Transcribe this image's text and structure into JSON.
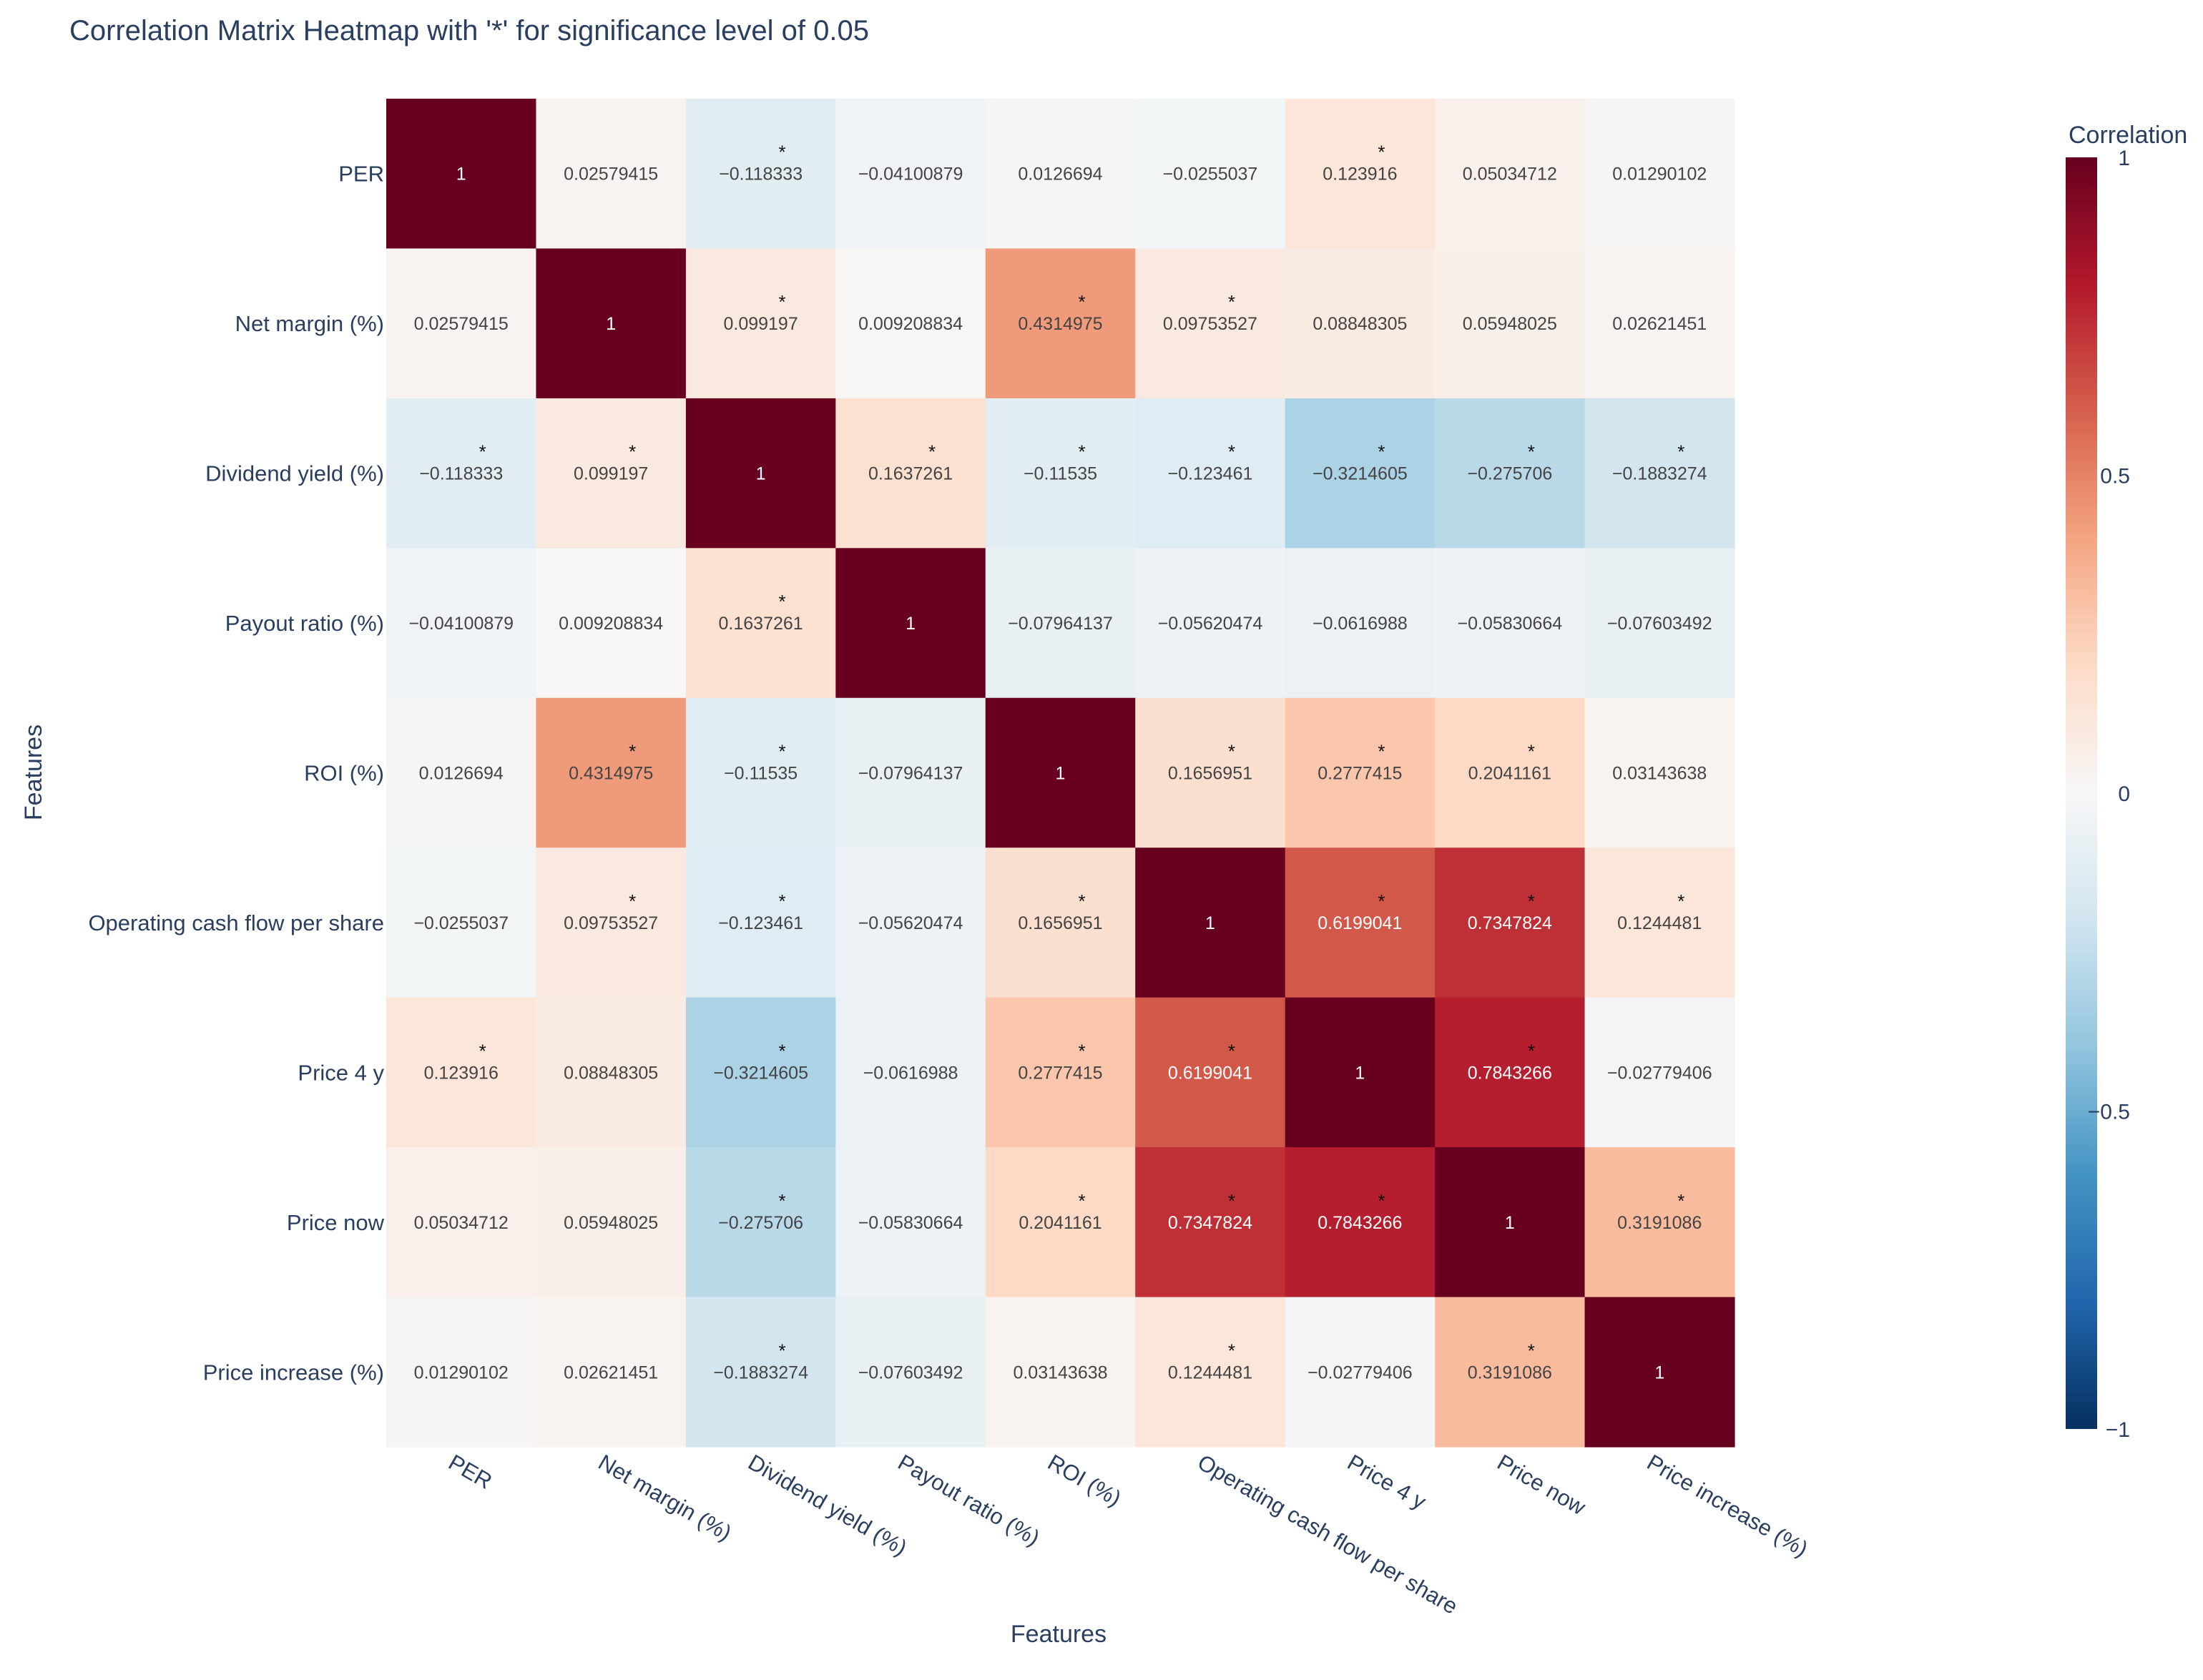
{
  "chart_data": {
    "type": "heatmap",
    "title": "Correlation Matrix Heatmap with '*' for significance level of 0.05",
    "xlabel": "Features",
    "ylabel": "Features",
    "colorbar": {
      "title": "Correlation",
      "range": [
        -1,
        1
      ],
      "ticks": [
        1,
        0.5,
        0,
        -0.5,
        -1
      ],
      "tick_labels": [
        "1",
        "0.5",
        "0",
        "−0.5",
        "−1"
      ],
      "colorscale": [
        "#053061",
        "#2166ac",
        "#4393c3",
        "#92c5de",
        "#d1e5f0",
        "#f7f7f7",
        "#fddbc7",
        "#f4a582",
        "#d6604d",
        "#b2182b",
        "#67001f"
      ]
    },
    "features": [
      "PER",
      "Net margin (%)",
      "Dividend yield (%)",
      "Payout ratio (%)",
      "ROI (%)",
      "Operating cash flow per share",
      "Price 4 y",
      "Price now",
      "Price increase (%)"
    ],
    "values": [
      [
        1,
        0.02579415,
        -0.118333,
        -0.04100879,
        0.0126694,
        -0.0255037,
        0.123916,
        0.05034712,
        0.01290102
      ],
      [
        0.02579415,
        1,
        0.099197,
        0.009208834,
        0.4314975,
        0.09753527,
        0.08848305,
        0.05948025,
        0.02621451
      ],
      [
        -0.118333,
        0.099197,
        1,
        0.1637261,
        -0.11535,
        -0.123461,
        -0.3214605,
        -0.275706,
        -0.1883274
      ],
      [
        -0.04100879,
        0.009208834,
        0.1637261,
        1,
        -0.07964137,
        -0.05620474,
        -0.0616988,
        -0.05830664,
        -0.07603492
      ],
      [
        0.0126694,
        0.4314975,
        -0.11535,
        -0.07964137,
        1,
        0.1656951,
        0.2777415,
        0.2041161,
        0.03143638
      ],
      [
        -0.0255037,
        0.09753527,
        -0.123461,
        -0.05620474,
        0.1656951,
        1,
        0.6199041,
        0.7347824,
        0.1244481
      ],
      [
        0.123916,
        0.08848305,
        -0.3214605,
        -0.0616988,
        0.2777415,
        0.6199041,
        1,
        0.7843266,
        -0.02779406
      ],
      [
        0.05034712,
        0.05948025,
        -0.275706,
        -0.05830664,
        0.2041161,
        0.7347824,
        0.7843266,
        1,
        0.3191086
      ],
      [
        0.01290102,
        0.02621451,
        -0.1883274,
        -0.07603492,
        0.03143638,
        0.1244481,
        -0.02779406,
        0.3191086,
        1
      ]
    ],
    "cell_labels": [
      [
        "1",
        "0.02579415",
        "−0.118333",
        "−0.04100879",
        "0.0126694",
        "−0.0255037",
        "0.123916",
        "0.05034712",
        "0.01290102"
      ],
      [
        "0.02579415",
        "1",
        "0.099197",
        "0.009208834",
        "0.4314975",
        "0.09753527",
        "0.08848305",
        "0.05948025",
        "0.02621451"
      ],
      [
        "−0.118333",
        "0.099197",
        "1",
        "0.1637261",
        "−0.11535",
        "−0.123461",
        "−0.3214605",
        "−0.275706",
        "−0.1883274"
      ],
      [
        "−0.04100879",
        "0.009208834",
        "0.1637261",
        "1",
        "−0.07964137",
        "−0.05620474",
        "−0.0616988",
        "−0.05830664",
        "−0.07603492"
      ],
      [
        "0.0126694",
        "0.4314975",
        "−0.11535",
        "−0.07964137",
        "1",
        "0.1656951",
        "0.2777415",
        "0.2041161",
        "0.03143638"
      ],
      [
        "−0.0255037",
        "0.09753527",
        "−0.123461",
        "−0.05620474",
        "0.1656951",
        "1",
        "0.6199041",
        "0.7347824",
        "0.1244481"
      ],
      [
        "0.123916",
        "0.08848305",
        "−0.3214605",
        "−0.0616988",
        "0.2777415",
        "0.6199041",
        "1",
        "0.7843266",
        "−0.02779406"
      ],
      [
        "0.05034712",
        "0.05948025",
        "−0.275706",
        "−0.05830664",
        "0.2041161",
        "0.7347824",
        "0.7843266",
        "1",
        "0.3191086"
      ],
      [
        "0.01290102",
        "0.02621451",
        "−0.1883274",
        "−0.07603492",
        "0.03143638",
        "0.1244481",
        "−0.02779406",
        "0.3191086",
        "1"
      ]
    ],
    "significance_marker": "*",
    "significant": [
      [
        0,
        2
      ],
      [
        0,
        6
      ],
      [
        1,
        2
      ],
      [
        1,
        4
      ],
      [
        1,
        5
      ],
      [
        2,
        3
      ],
      [
        2,
        4
      ],
      [
        2,
        5
      ],
      [
        2,
        6
      ],
      [
        2,
        7
      ],
      [
        2,
        8
      ],
      [
        4,
        5
      ],
      [
        4,
        6
      ],
      [
        4,
        7
      ],
      [
        5,
        6
      ],
      [
        5,
        7
      ],
      [
        5,
        8
      ],
      [
        6,
        7
      ],
      [
        7,
        8
      ]
    ]
  }
}
